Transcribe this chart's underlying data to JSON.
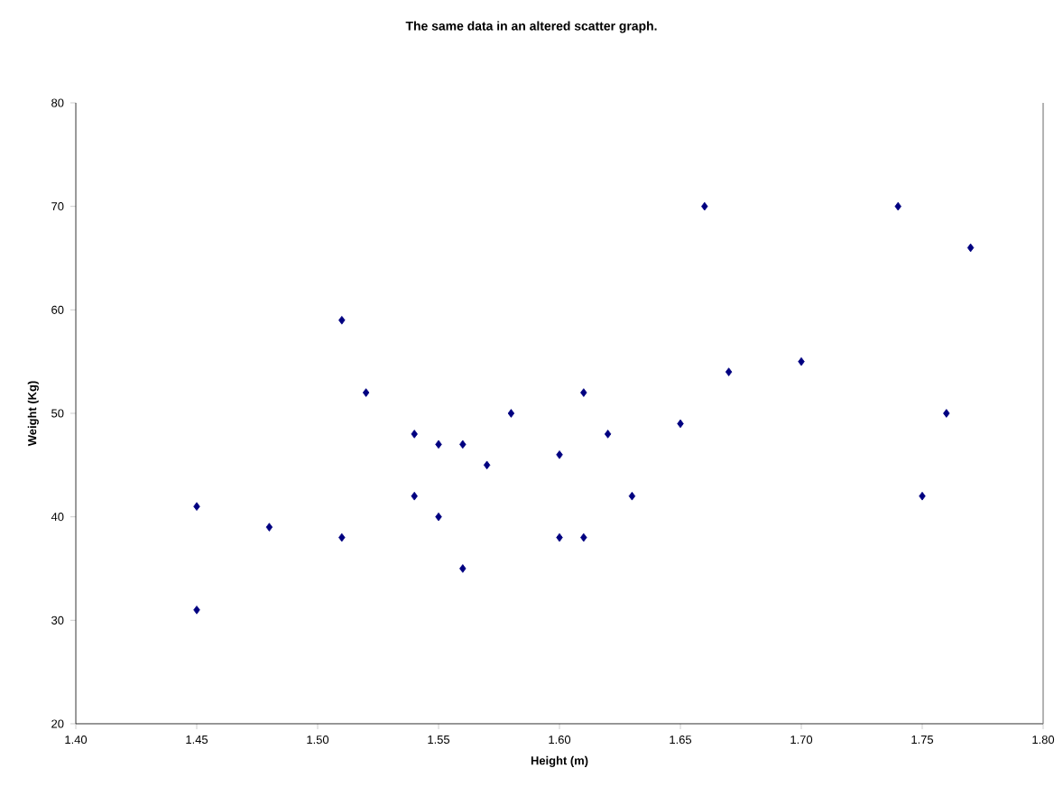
{
  "chart_data": {
    "type": "scatter",
    "title": "The same data in an altered scatter graph.",
    "xlabel": "Height (m)",
    "ylabel": "Weight (Kg)",
    "x": [
      1.45,
      1.45,
      1.48,
      1.51,
      1.51,
      1.52,
      1.54,
      1.54,
      1.55,
      1.55,
      1.56,
      1.56,
      1.57,
      1.58,
      1.6,
      1.6,
      1.61,
      1.61,
      1.62,
      1.63,
      1.65,
      1.66,
      1.67,
      1.7,
      1.74,
      1.75,
      1.76,
      1.77
    ],
    "values": [
      41,
      31,
      39,
      59,
      38,
      52,
      48,
      42,
      47,
      40,
      47,
      35,
      45,
      50,
      46,
      38,
      52,
      38,
      48,
      42,
      49,
      70,
      54,
      55,
      70,
      42,
      50,
      66
    ],
    "color": "#000080",
    "marker": "diamond",
    "xlim": [
      1.4,
      1.8
    ],
    "ylim": [
      20,
      80
    ],
    "xticks": [
      {
        "value": 1.4,
        "label": "1.40"
      },
      {
        "value": 1.45,
        "label": "1.45"
      },
      {
        "value": 1.5,
        "label": "1.50"
      },
      {
        "value": 1.55,
        "label": "1.55"
      },
      {
        "value": 1.6,
        "label": "1.60"
      },
      {
        "value": 1.65,
        "label": "1.65"
      },
      {
        "value": 1.7,
        "label": "1.70"
      },
      {
        "value": 1.75,
        "label": "1.75"
      },
      {
        "value": 1.8,
        "label": "1.80"
      }
    ],
    "yticks": [
      20,
      30,
      40,
      50,
      60,
      70,
      80
    ]
  }
}
